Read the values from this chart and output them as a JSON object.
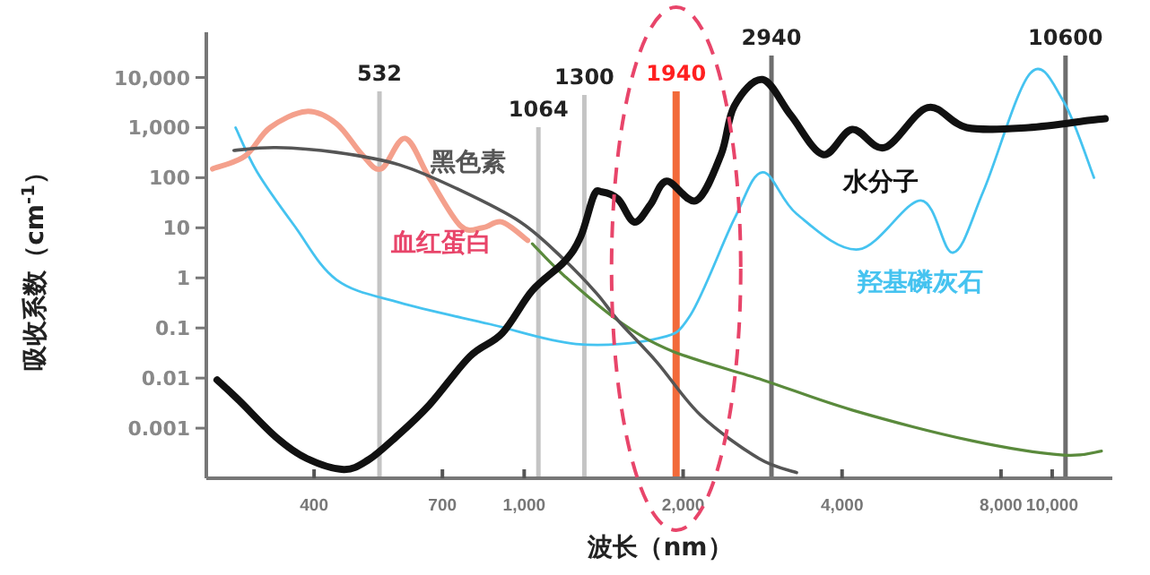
{
  "chart_data": {
    "type": "line",
    "xlabel": "波长（nm）",
    "ylabel": "吸收系数（cm$^{-1}$）",
    "log": "xy",
    "xlim": [
      250,
      13000
    ],
    "ylim": [
      0.0001,
      80000
    ],
    "xticks": [
      400,
      700,
      {
        "value": 1000,
        "label": "1,000"
      },
      {
        "value": 2000,
        "label": "2,000"
      },
      {
        "value": 4000,
        "label": "4,000"
      },
      {
        "value": 8000,
        "label": "8,000"
      },
      {
        "value": 10000,
        "label": "10,000"
      }
    ],
    "yticks": [
      {
        "value": 10000,
        "label": "10,000"
      },
      {
        "value": 1000,
        "label": "1,000"
      },
      100,
      10,
      1,
      0.1,
      0.01,
      0.001
    ],
    "ref_lines": [
      {
        "axis": "x",
        "value": 532,
        "label": "532",
        "color": "#c4c4c4"
      },
      {
        "axis": "x",
        "value": 1064,
        "label": "1064",
        "color": "#c4c4c4"
      },
      {
        "axis": "x",
        "value": 1300,
        "label": "1300",
        "color": "#c4c4c4"
      },
      {
        "axis": "x",
        "value": 1940,
        "label": "1940",
        "color": "#f26a3a"
      },
      {
        "axis": "x",
        "value": 2940,
        "label": "2940",
        "color": "#6e6e6e"
      },
      {
        "axis": "x",
        "value": 10600,
        "label": "10600",
        "color": "#6e6e6e"
      }
    ],
    "series": [
      {
        "name": "羟基磷灰石",
        "color": "#45c3f0",
        "x": [
          284,
          312,
          367,
          441,
          581,
          859,
          1253,
          1782,
          2064,
          2500,
          2828,
          3280,
          4300,
          5640,
          6490,
          7420,
          9080,
          10500,
          12000
        ],
        "values": [
          1000,
          130,
          11,
          0.92,
          0.32,
          0.12,
          0.048,
          0.061,
          0.18,
          15,
          128,
          19,
          3.7,
          35,
          3.2,
          56,
          12000,
          3400,
          100
        ]
      },
      {
        "name": "血红蛋白",
        "color": "#f4a08c",
        "x": [
          257,
          296,
          330,
          387,
          441,
          493,
          536,
          595,
          661,
          757,
          834,
          908,
          1015
        ],
        "values": [
          150,
          270,
          1000,
          2100,
          1200,
          290,
          150,
          610,
          100,
          11,
          10,
          13,
          5.6
        ]
      },
      {
        "color": "#5a8a3c",
        "x": [
          1036,
          1191,
          1507,
          1914,
          2828,
          4180,
          7050,
          10500,
          12400
        ],
        "values": [
          4.8,
          1.1,
          0.14,
          0.034,
          0.0092,
          0.0023,
          0.00056,
          0.00029,
          0.00035
        ]
      },
      {
        "name": "黑色素",
        "color": "#555555",
        "x": [
          282,
          339,
          441,
          581,
          757,
          984,
          1191,
          1374,
          1507,
          1782,
          2160,
          2780,
          3280
        ],
        "values": [
          350,
          400,
          320,
          180,
          56,
          13,
          2.3,
          0.48,
          0.14,
          0.021,
          0.0018,
          0.00025,
          0.00013
        ]
      },
      {
        "name": "水分子",
        "color": "#111111",
        "x": [
          262,
          289,
          339,
          387,
          455,
          506,
          571,
          661,
          789,
          908,
          1036,
          1191,
          1279,
          1355,
          1403,
          1507,
          1617,
          1734,
          1862,
          2118,
          2360,
          2500,
          2828,
          3200,
          3681,
          4180,
          4820,
          5810,
          6890,
          9016,
          11800,
          12600
        ],
        "values": [
          0.0092,
          0.0035,
          0.00066,
          0.00025,
          0.00015,
          0.00023,
          0.00066,
          0.0029,
          0.027,
          0.078,
          0.56,
          2.1,
          6.6,
          44,
          52,
          37,
          13,
          29,
          85,
          35,
          290,
          2700,
          9100,
          1750,
          290,
          920,
          400,
          2500,
          1000,
          1000,
          1400,
          1500
        ]
      }
    ]
  }
}
